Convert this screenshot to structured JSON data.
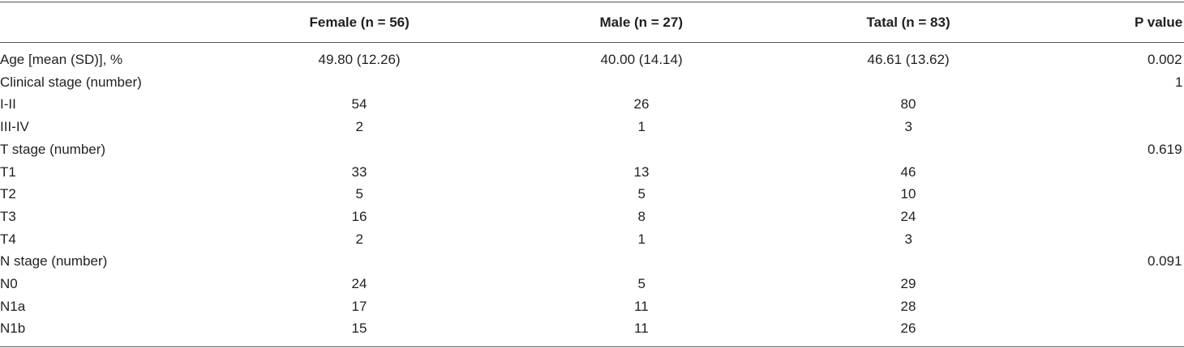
{
  "table": {
    "headers": [
      "Female (n = 56)",
      "Male (n = 27)",
      "Tatal (n = 83)",
      "P value"
    ],
    "rows": [
      {
        "label": "Age [mean (SD)], %",
        "female": "49.80 (12.26)",
        "male": "40.00 (14.14)",
        "total": "46.61 (13.62)",
        "p": "0.002"
      },
      {
        "label": "Clinical stage (number)",
        "p": "1"
      },
      {
        "label": "I-II",
        "female": "54",
        "male": "26",
        "total": "80"
      },
      {
        "label": "III-IV",
        "female": "2",
        "male": "1",
        "total": "3"
      },
      {
        "label": "T stage (number)",
        "p": "0.619"
      },
      {
        "label": "T1",
        "female": "33",
        "male": "13",
        "total": "46"
      },
      {
        "label": "T2",
        "female": "5",
        "male": "5",
        "total": "10"
      },
      {
        "label": "T3",
        "female": "16",
        "male": "8",
        "total": "24"
      },
      {
        "label": "T4",
        "female": "2",
        "male": "1",
        "total": "3"
      },
      {
        "label": "N stage (number)",
        "p": "0.091"
      },
      {
        "label": "N0",
        "female": "24",
        "male": "5",
        "total": "29"
      },
      {
        "label": "N1a",
        "female": "17",
        "male": "11",
        "total": "28"
      },
      {
        "label": "N1b",
        "female": "15",
        "male": "11",
        "total": "26"
      }
    ]
  }
}
